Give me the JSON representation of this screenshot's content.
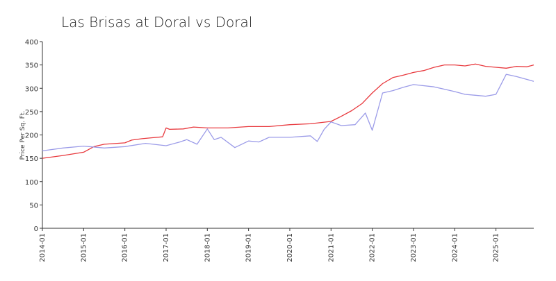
{
  "chart_data": {
    "type": "line",
    "title": "Las Brisas at Doral vs Doral",
    "xlabel": "",
    "ylabel": "Price Per Sq. Ft.",
    "ylim": [
      0,
      400
    ],
    "yticks": [
      0,
      50,
      100,
      150,
      200,
      250,
      300,
      350,
      400
    ],
    "xlim": [
      "2014-01",
      "2025-12"
    ],
    "xticks": [
      "2014-01",
      "2015-01",
      "2016-01",
      "2017-01",
      "2018-01",
      "2019-01",
      "2020-01",
      "2021-01",
      "2022-01",
      "2023-01",
      "2024-01",
      "2025-01"
    ],
    "grid": false,
    "legend": "none",
    "series": [
      {
        "color": "#e8383d",
        "x": [
          "2014-01",
          "2014-07",
          "2015-01",
          "2015-04",
          "2015-07",
          "2016-01",
          "2016-03",
          "2016-06",
          "2016-09",
          "2016-12",
          "2017-01",
          "2017-02",
          "2017-06",
          "2017-09",
          "2018-01",
          "2018-07",
          "2019-01",
          "2019-07",
          "2020-01",
          "2020-07",
          "2021-01",
          "2021-04",
          "2021-07",
          "2021-10",
          "2022-01",
          "2022-04",
          "2022-07",
          "2022-10",
          "2023-01",
          "2023-04",
          "2023-07",
          "2023-10",
          "2024-01",
          "2024-04",
          "2024-07",
          "2024-10",
          "2025-01",
          "2025-04",
          "2025-07",
          "2025-10",
          "2025-12"
        ],
        "values": [
          150,
          156,
          163,
          175,
          180,
          183,
          189,
          192,
          194,
          196,
          215,
          212,
          213,
          217,
          215,
          215,
          218,
          218,
          222,
          224,
          229,
          240,
          252,
          267,
          290,
          310,
          323,
          328,
          334,
          338,
          345,
          350,
          350,
          348,
          352,
          347,
          345,
          343,
          347,
          346,
          350
        ]
      },
      {
        "color": "#9b9be8",
        "x": [
          "2014-01",
          "2014-07",
          "2015-01",
          "2015-07",
          "2016-01",
          "2016-07",
          "2017-01",
          "2017-05",
          "2017-07",
          "2017-10",
          "2018-01",
          "2018-03",
          "2018-05",
          "2018-09",
          "2019-01",
          "2019-04",
          "2019-07",
          "2020-01",
          "2020-07",
          "2020-09",
          "2020-11",
          "2021-01",
          "2021-04",
          "2021-08",
          "2021-11",
          "2022-01",
          "2022-04",
          "2022-07",
          "2022-10",
          "2023-01",
          "2023-07",
          "2024-01",
          "2024-04",
          "2024-07",
          "2024-10",
          "2025-01",
          "2025-04",
          "2025-07",
          "2025-12"
        ],
        "values": [
          166,
          172,
          176,
          172,
          175,
          182,
          177,
          185,
          190,
          180,
          213,
          190,
          195,
          173,
          187,
          185,
          195,
          195,
          198,
          186,
          212,
          228,
          220,
          222,
          247,
          210,
          290,
          295,
          302,
          308,
          303,
          293,
          287,
          285,
          283,
          287,
          330,
          325,
          315
        ]
      }
    ]
  }
}
